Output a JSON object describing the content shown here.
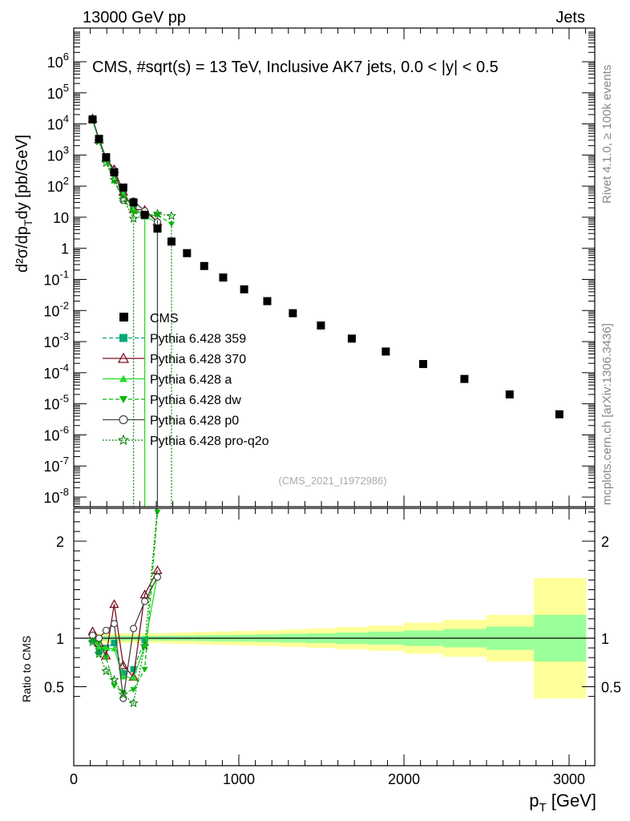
{
  "header": {
    "left_label": "13000 GeV pp",
    "right_label": "Jets",
    "plot_title": "CMS, #sqrt(s) = 13 TeV, Inclusive AK7 jets, 0.0 < |y| < 0.5",
    "side_label_top": "Rivet 4.1.0, ≥ 100k events",
    "side_label_bottom": "mcplots.cern.ch [arXiv:1306.3436]",
    "analysis_id": "(CMS_2021_I1972986)"
  },
  "chart_data": [
    {
      "type": "scatter",
      "scale": "log",
      "ylabel_main": "d²σ/dp",
      "ylabel_sub": "T",
      "ylabel_tail": "dy [pb/GeV]",
      "ylim": [
        5e-09,
        10000000.0
      ],
      "xlim": [
        0,
        3150
      ],
      "y_tick_labels": [
        {
          "value": 1e-08,
          "base": "10",
          "exp": "-8"
        },
        {
          "value": 1e-07,
          "base": "10",
          "exp": "-7"
        },
        {
          "value": 1e-06,
          "base": "10",
          "exp": "-6"
        },
        {
          "value": 1e-05,
          "base": "10",
          "exp": "-5"
        },
        {
          "value": 0.0001,
          "base": "10",
          "exp": "-4"
        },
        {
          "value": 0.001,
          "base": "10",
          "exp": "-3"
        },
        {
          "value": 0.01,
          "base": "10",
          "exp": "-2"
        },
        {
          "value": 0.1,
          "base": "10",
          "exp": "-1"
        },
        {
          "value": 1,
          "base": "1",
          "exp": ""
        },
        {
          "value": 10,
          "base": "10",
          "exp": ""
        },
        {
          "value": 100.0,
          "base": "10",
          "exp": "2"
        },
        {
          "value": 1000.0,
          "base": "10",
          "exp": "3"
        },
        {
          "value": 10000.0,
          "base": "10",
          "exp": "4"
        },
        {
          "value": 100000.0,
          "base": "10",
          "exp": "5"
        },
        {
          "value": 1000000.0,
          "base": "10",
          "exp": "6"
        }
      ],
      "cms": {
        "name": "CMS",
        "x": [
          114,
          153,
          196,
          245,
          300,
          362,
          430,
          507,
          592,
          686,
          790,
          905,
          1032,
          1172,
          1327,
          1497,
          1684,
          1890,
          2116,
          2366,
          2640,
          2941
        ],
        "y": [
          14000,
          3300,
          850,
          280,
          90,
          30,
          12,
          4.3,
          1.65,
          0.7,
          0.27,
          0.115,
          0.048,
          0.02,
          0.0082,
          0.0033,
          0.00125,
          0.00048,
          0.00019,
          6.3e-05,
          2e-05,
          4.6e-06
        ]
      },
      "series": [
        {
          "name": "Pythia 6.428 359",
          "color": "#00a878",
          "marker": "square-filled",
          "line": "dashed",
          "x": [
            114,
            153,
            196,
            245,
            300,
            362,
            430
          ],
          "y": [
            14000,
            3200,
            780,
            270,
            60,
            20,
            11
          ]
        },
        {
          "name": "Pythia 6.428 370",
          "color": "#7a1020",
          "marker": "triangle-open",
          "line": "solid",
          "x": [
            114,
            153,
            196,
            245,
            300,
            362,
            430,
            507
          ],
          "y": [
            15000,
            3100,
            780,
            350,
            65,
            18,
            17,
            7.2
          ]
        },
        {
          "name": "Pythia 6.428 a",
          "color": "#22dd22",
          "marker": "triangle-filled",
          "line": "solid",
          "x": [
            114,
            153,
            196,
            245,
            300,
            362,
            430,
            507
          ],
          "y": [
            14000,
            3000,
            760,
            250,
            55,
            18,
            11,
            6.5
          ]
        },
        {
          "name": "Pythia 6.428 dw",
          "color": "#00bb00",
          "marker": "triangle-down-filled",
          "line": "dashed",
          "x": [
            114,
            153,
            196,
            245,
            300,
            362,
            430,
            507,
            592
          ],
          "y": [
            14000,
            3100,
            680,
            140,
            40,
            14,
            10,
            12,
            6.0
          ]
        },
        {
          "name": "Pythia 6.428 p0",
          "color": "#444444",
          "marker": "circle-open",
          "line": "solid",
          "x": [
            114,
            153,
            196,
            245,
            300,
            362,
            430,
            507
          ],
          "y": [
            14500,
            3300,
            780,
            320,
            35,
            33,
            16,
            7.0
          ]
        },
        {
          "name": "Pythia 6.428 pro-q2o",
          "color": "#118811",
          "marker": "star-open",
          "line": "dotted",
          "x": [
            114,
            153,
            196,
            245,
            300,
            362,
            430,
            507,
            592
          ],
          "y": [
            13500,
            2800,
            560,
            160,
            38,
            9,
            11,
            13,
            11
          ]
        }
      ]
    },
    {
      "type": "scatter",
      "ylabel": "Ratio to CMS",
      "xlabel_main": "p",
      "xlabel_sub": "T",
      "xlabel_tail": " [GeV]",
      "ylim": [
        0.36,
        2.4
      ],
      "xlim": [
        0,
        3150
      ],
      "x_tick_labels": [
        "0",
        "1000",
        "2000",
        "3000"
      ],
      "x_ticks": [
        0,
        1000,
        2000,
        3000
      ],
      "y_tick_labels": [
        "0.5",
        "1",
        "2"
      ],
      "y_ticks": [
        0.5,
        1,
        2
      ],
      "bands": {
        "edges": [
          97,
          133,
          174,
          220,
          272,
          330,
          395,
          468,
          548,
          638,
          737,
          846,
          967,
          1101,
          1248,
          1410,
          1588,
          1784,
          2000,
          2238,
          2500,
          2787,
          3103
        ],
        "inner": [
          0.025,
          0.025,
          0.025,
          0.025,
          0.025,
          0.025,
          0.025,
          0.025,
          0.026,
          0.027,
          0.03,
          0.033,
          0.036,
          0.04,
          0.045,
          0.05,
          0.058,
          0.068,
          0.08,
          0.095,
          0.12,
          0.24
        ],
        "outer": [
          0.05,
          0.05,
          0.05,
          0.05,
          0.05,
          0.05,
          0.05,
          0.05,
          0.055,
          0.06,
          0.065,
          0.07,
          0.075,
          0.08,
          0.09,
          0.1,
          0.115,
          0.13,
          0.16,
          0.19,
          0.24,
          0.62
        ]
      },
      "series": [
        {
          "name": "Pythia 6.428 359",
          "color": "#00a878",
          "marker": "square-filled",
          "line": "dashed",
          "x": [
            114,
            153,
            196,
            245,
            300,
            362,
            430
          ],
          "y": [
            0.98,
            0.86,
            0.9,
            0.95,
            0.64,
            0.68,
            0.98
          ]
        },
        {
          "name": "Pythia 6.428 370",
          "color": "#7a1020",
          "marker": "triangle-open",
          "line": "solid",
          "x": [
            114,
            153,
            196,
            245,
            300,
            362,
            430,
            507
          ],
          "y": [
            1.07,
            0.95,
            0.82,
            1.35,
            0.72,
            0.6,
            1.45,
            1.7
          ]
        },
        {
          "name": "Pythia 6.428 a",
          "color": "#22dd22",
          "marker": "triangle-filled",
          "line": "solid",
          "x": [
            114,
            153,
            196,
            245,
            300,
            362,
            430,
            507
          ],
          "y": [
            1.0,
            0.91,
            0.9,
            0.89,
            0.6,
            0.59,
            0.92,
            1.65
          ]
        },
        {
          "name": "Pythia 6.428 dw",
          "color": "#00bb00",
          "marker": "triangle-down-filled",
          "line": "dashed",
          "x": [
            114,
            153,
            196,
            245,
            300,
            362,
            430,
            507
          ],
          "y": [
            1.0,
            0.95,
            0.8,
            0.51,
            0.44,
            0.47,
            0.68,
            2.3
          ]
        },
        {
          "name": "Pythia 6.428 p0",
          "color": "#444444",
          "marker": "circle-open",
          "line": "solid",
          "x": [
            114,
            153,
            196,
            245,
            300,
            362,
            430,
            507
          ],
          "y": [
            1.03,
            1.0,
            1.08,
            1.15,
            0.38,
            1.1,
            1.38,
            1.63
          ]
        },
        {
          "name": "Pythia 6.428 pro-q2o",
          "color": "#118811",
          "marker": "star-open",
          "line": "dotted",
          "x": [
            114,
            153,
            196,
            245,
            300,
            362,
            430,
            507
          ],
          "y": [
            0.96,
            0.84,
            0.66,
            0.57,
            0.42,
            0.33,
            0.92,
            2.4
          ]
        }
      ]
    }
  ]
}
